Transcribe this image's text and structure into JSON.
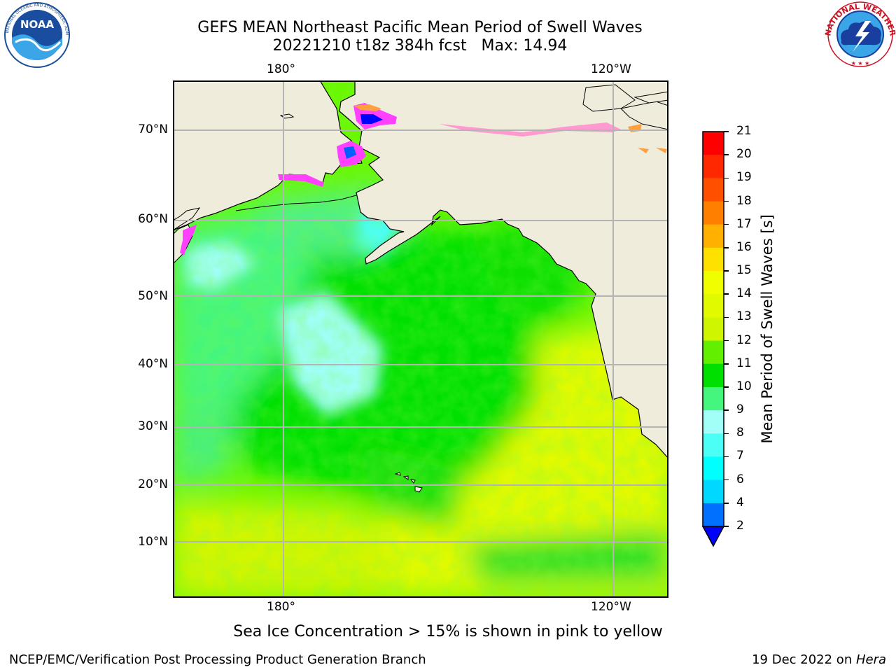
{
  "title": {
    "line1": "GEFS MEAN Northeast Pacific Mean Period of Swell Waves",
    "line2": "20221210 t18z 384h fcst   Max: 14.94"
  },
  "map": {
    "lon_labels_top": [
      "180°",
      "120°W"
    ],
    "lon_labels_bottom": [
      "180°",
      "120°W"
    ],
    "lat_labels": [
      "70°N",
      "60°N",
      "50°N",
      "40°N",
      "30°N",
      "20°N",
      "10°N"
    ],
    "land_color": "#efecdc",
    "ocean_colors": {
      "cyan_light": "#a0fff8",
      "cyan": "#4cfffa",
      "green_light": "#44f57e",
      "green": "#00e000",
      "green_yellow": "#6af700",
      "yellow_green": "#c8f800",
      "yellow": "#e8fa00"
    },
    "sea_ice_colors": [
      "#ff40ff",
      "#0000ff",
      "#ffa040"
    ]
  },
  "colorbar": {
    "title": "Mean Period of Swell Waves [s]",
    "ticks": [
      "21",
      "20",
      "19",
      "18",
      "17",
      "16",
      "15",
      "14",
      "13",
      "12",
      "11",
      "10",
      "9",
      "8",
      "7",
      "6",
      "4",
      "2"
    ],
    "colors_top_to_bottom": [
      "#ff0000",
      "#ff2800",
      "#ff5000",
      "#ff8000",
      "#ffb000",
      "#ffe100",
      "#f0ff00",
      "#e2fa00",
      "#cff500",
      "#62f000",
      "#00e000",
      "#44f57e",
      "#a2fff8",
      "#4bfff6",
      "#00ffff",
      "#00d8ff",
      "#0070ff"
    ],
    "extend_low_color": "#0000ff"
  },
  "caption": "Sea Ice Concentration > 15% is shown in pink to yellow",
  "footer": {
    "left": "NCEP/EMC/Verification Post Processing Product Generation Branch",
    "right_prefix": "19 Dec 2022 on ",
    "right_italic": "Hera"
  },
  "logos": {
    "noaa": {
      "name": "noaa-logo",
      "text": "NOAA",
      "ring_text": "NATIONAL OCEANIC AND ATMOSPHERIC ADMINISTRATION · U.S. DEPARTMENT OF COMMERCE"
    },
    "nws": {
      "name": "nws-logo",
      "ring_text": "NATIONAL WEATHER SERVICE"
    }
  }
}
